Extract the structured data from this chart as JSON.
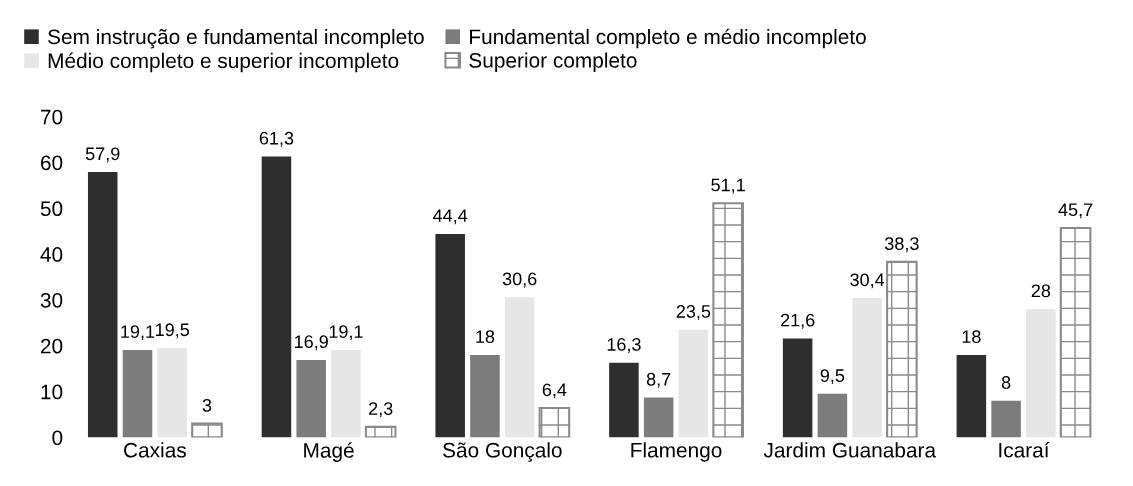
{
  "chart_data": {
    "type": "bar",
    "categories": [
      "Caxias",
      "Magé",
      "São Gonçalo",
      "Flamengo",
      "Jardim Guanabara",
      "Icaraí"
    ],
    "series": [
      {
        "name": "Sem instrução e fundamental incompleto",
        "color": "#2e2e2e",
        "values": [
          57.9,
          61.3,
          44.4,
          16.3,
          21.6,
          18
        ],
        "value_labels": [
          "57,9",
          "61,3",
          "44,4",
          "16,3",
          "21,6",
          "18"
        ]
      },
      {
        "name": "Fundamental completo e médio incompleto",
        "color": "#7c7c7c",
        "values": [
          19.1,
          16.9,
          18,
          8.7,
          9.5,
          8
        ],
        "value_labels": [
          "19,1",
          "16,9",
          "18",
          "8,7",
          "9,5",
          "8"
        ]
      },
      {
        "name": "Médio completo e superior incompleto",
        "color": "#e6e6e6",
        "values": [
          19.5,
          19.1,
          30.6,
          23.5,
          30.4,
          28
        ],
        "value_labels": [
          "19,5",
          "19,1",
          "30,6",
          "23,5",
          "30,4",
          "28"
        ]
      },
      {
        "name": "Superior completo",
        "color": "#8a8a8a",
        "values": [
          3,
          2.3,
          6.4,
          51.1,
          38.3,
          45.7
        ],
        "value_labels": [
          "3",
          "2,3",
          "6,4",
          "51,1",
          "38,3",
          "45,7"
        ]
      }
    ],
    "ylim": [
      0,
      70
    ],
    "yticks": [
      0,
      10,
      20,
      30,
      40,
      50,
      60,
      70
    ],
    "grid": false,
    "legend": "top"
  }
}
